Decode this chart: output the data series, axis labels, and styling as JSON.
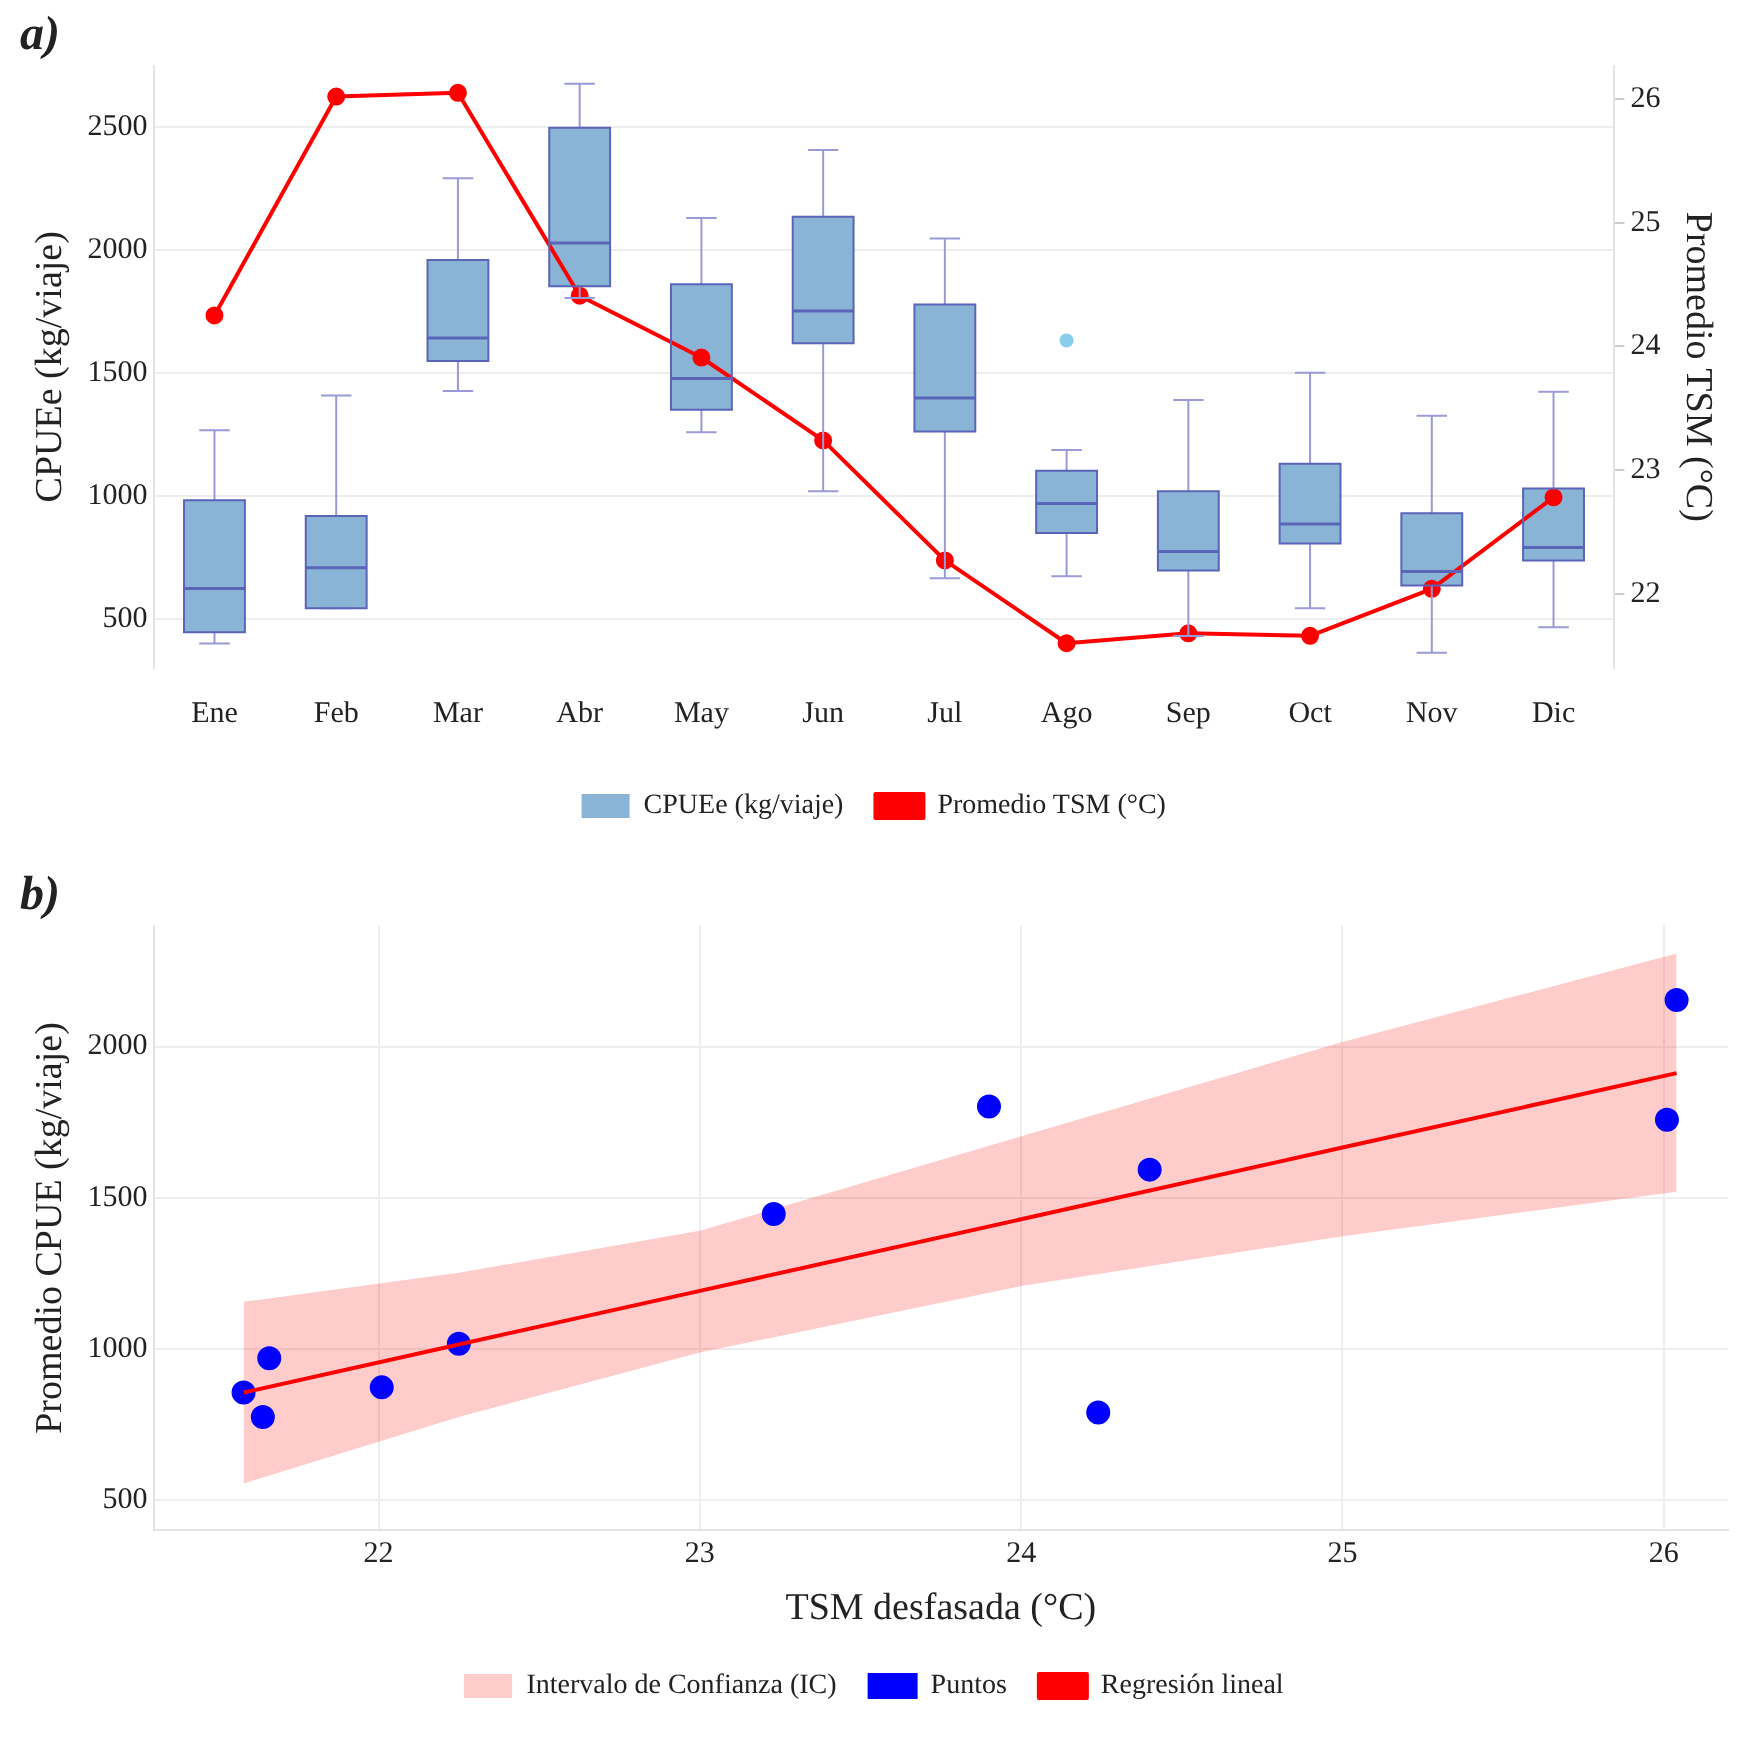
{
  "chart_data": [
    {
      "type": "box",
      "title": "a)",
      "ylabel": "CPUEe (kg/viaje)",
      "y2label": "Promedio TSM (°C)",
      "categories": [
        "Ene",
        "Feb",
        "Mar",
        "Abr",
        "May",
        "Jun",
        "Jul",
        "Ago",
        "Sep",
        "Oct",
        "Nov",
        "Dic"
      ],
      "ylim": [
        300,
        2750
      ],
      "yticks": [
        500,
        1000,
        1500,
        2000,
        2500
      ],
      "y2lim": [
        21.4,
        26.27
      ],
      "y2ticks": [
        22,
        23,
        24,
        25,
        26
      ],
      "grid": "y",
      "legend": "bottom",
      "series": [
        {
          "name": "CPUEe (kg/viaje)",
          "type": "box",
          "color": "#8ab4d6",
          "boxes": [
            {
              "low": 400,
              "q1": 445,
              "median": 623,
              "q3": 982,
              "high": 1267
            },
            {
              "low": 543,
              "q1": 543,
              "median": 708,
              "q3": 918,
              "high": 1408
            },
            {
              "low": 1427,
              "q1": 1549,
              "median": 1642,
              "q3": 1959,
              "high": 2292
            },
            {
              "low": 1805,
              "q1": 1853,
              "median": 2029,
              "q3": 2497,
              "high": 2676
            },
            {
              "low": 1259,
              "q1": 1350,
              "median": 1477,
              "q3": 1861,
              "high": 2130
            },
            {
              "low": 1019,
              "q1": 1621,
              "median": 1752,
              "q3": 2135,
              "high": 2407
            },
            {
              "low": 665,
              "q1": 1262,
              "median": 1398,
              "q3": 1778,
              "high": 2047
            },
            {
              "low": 673,
              "q1": 849,
              "median": 969,
              "q3": 1102,
              "high": 1187,
              "outliers": [
                1632
              ]
            },
            {
              "low": 430,
              "q1": 697,
              "median": 774,
              "q3": 1019,
              "high": 1390
            },
            {
              "low": 543,
              "q1": 806,
              "median": 886,
              "q3": 1131,
              "high": 1501
            },
            {
              "low": 362,
              "q1": 636,
              "median": 692,
              "q3": 929,
              "high": 1326
            },
            {
              "low": 466,
              "q1": 737,
              "median": 790,
              "q3": 1030,
              "high": 1424
            }
          ]
        },
        {
          "name": "Promedio TSM (°C)",
          "type": "line",
          "axis": "y2",
          "color": "#ff0000",
          "marker": "circle",
          "values": [
            24.25,
            26.02,
            26.05,
            24.41,
            23.91,
            23.24,
            22.27,
            21.6,
            21.68,
            21.66,
            22.04,
            22.78
          ]
        }
      ]
    },
    {
      "type": "scatter",
      "title": "b)",
      "xlabel": "TSM desfasada (°C)",
      "ylabel": "Promedio CPUE (kg/viaje)",
      "xlim": [
        21.3,
        26.2
      ],
      "xticks": [
        22,
        23,
        24,
        25,
        26
      ],
      "ylim": [
        400,
        2400
      ],
      "yticks": [
        500,
        1000,
        1500,
        2000
      ],
      "grid": true,
      "legend": "bottom",
      "series": [
        {
          "name": "Puntos",
          "type": "scatter",
          "color": "#0000ff",
          "marker": "circle",
          "x": [
            21.58,
            21.64,
            21.66,
            22.01,
            22.25,
            23.23,
            23.9,
            24.24,
            24.4,
            26.01,
            26.04
          ],
          "values": [
            856,
            775,
            969,
            873,
            1017,
            1446,
            1802,
            790,
            1593,
            1758,
            2154
          ]
        },
        {
          "name": "Regresión lineal",
          "type": "line",
          "color": "#ff0000",
          "marker": "none",
          "x": [
            21.58,
            22.25,
            23,
            24,
            25,
            26.04
          ],
          "values": [
            856,
            1015,
            1192,
            1429,
            1666,
            1912
          ],
          "lower": [
            555,
            775,
            988,
            1208,
            1373,
            1520
          ],
          "upper": [
            1156,
            1252,
            1391,
            1703,
            2015,
            2308
          ]
        }
      ],
      "annotations": [
        "Intervalo de Confianza (IC)"
      ]
    }
  ]
}
